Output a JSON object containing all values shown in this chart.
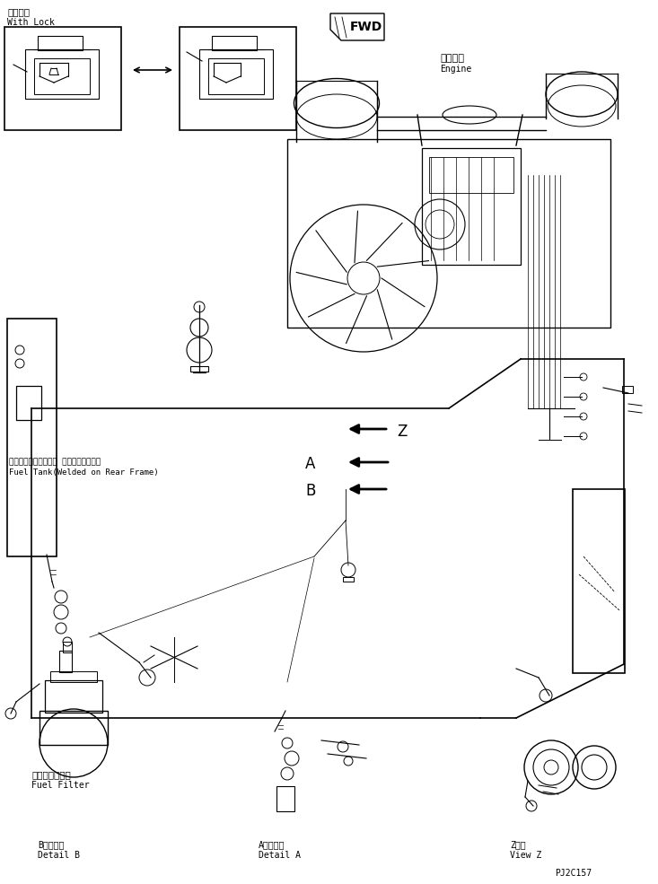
{
  "title": "",
  "bg_color": "#ffffff",
  "line_color": "#000000",
  "fig_width": 7.33,
  "fig_height": 9.85,
  "dpi": 100,
  "labels": {
    "with_lock_jp": "ロック付",
    "with_lock_en": "With Lock",
    "engine_jp": "エンジン",
    "engine_en": "Engine",
    "fuel_tank_jp": "フェルタンク（リヤー フレームに溶接）",
    "fuel_tank_en": "Fuel Tank(Welded on Rear Frame)",
    "fuel_filter_jp": "フェルフィルタ",
    "fuel_filter_en": "Fuel Filter",
    "detail_b_jp": "B　詳　細",
    "detail_b_en": "Detail B",
    "detail_a_jp": "A　詳　細",
    "detail_a_en": "Detail A",
    "view_z_jp": "Z　視",
    "view_z_en": "View Z",
    "fwd": "FWD",
    "part_number": "PJ2C157",
    "label_z": "Z",
    "label_a": "A",
    "label_b": "B"
  },
  "arrow_color": "#000000",
  "box_color": "#000000"
}
